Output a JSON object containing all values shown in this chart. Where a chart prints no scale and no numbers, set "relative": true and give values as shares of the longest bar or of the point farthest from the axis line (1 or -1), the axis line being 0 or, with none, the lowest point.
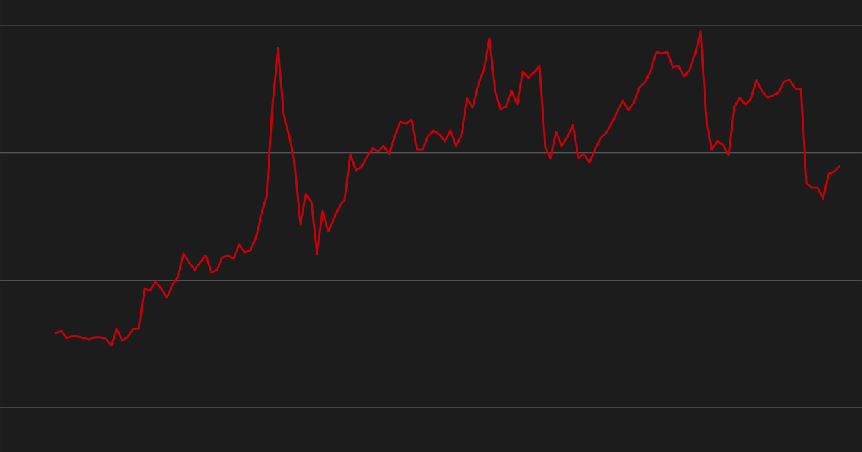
{
  "chart_data": {
    "type": "line",
    "relative": true,
    "ref_lines": [
      {
        "axis": "y",
        "value": 0.338,
        "color": "#6e6e6e"
      },
      {
        "axis": "y",
        "value": 0.677,
        "color": "#6e6e6e"
      },
      {
        "axis": "y",
        "value": 1.015,
        "color": "#6e6e6e"
      }
    ],
    "categories": [
      null,
      null,
      null,
      null,
      null,
      null,
      null,
      null,
      null,
      null,
      null,
      null,
      null,
      null,
      null,
      null,
      null,
      null,
      null,
      null,
      null,
      null,
      null,
      null,
      null,
      null,
      null,
      null,
      null,
      null,
      null,
      null,
      null,
      null,
      null,
      null,
      null,
      null,
      null,
      null,
      null,
      null,
      null,
      null,
      null,
      null,
      null,
      null,
      null,
      null,
      null,
      null,
      null,
      null,
      null,
      null,
      null,
      null,
      null,
      null,
      null,
      null,
      null,
      null,
      null,
      null,
      null,
      null,
      null,
      null,
      null,
      null,
      null,
      null,
      null,
      null,
      null,
      null,
      null,
      null,
      null,
      null,
      null,
      null,
      null,
      null,
      null,
      null,
      null,
      null,
      null,
      null,
      null,
      null,
      null,
      null,
      null,
      null,
      null,
      null,
      null,
      null,
      null,
      null,
      null,
      null,
      null,
      null,
      null,
      null,
      null,
      null,
      null,
      null,
      null,
      null,
      null,
      null,
      null,
      null,
      null,
      null,
      null,
      null,
      null,
      null,
      null,
      null,
      null,
      null,
      null,
      null,
      null,
      null,
      null,
      null,
      null,
      null,
      null,
      null,
      null,
      null
    ],
    "series": [
      {
        "color": "#c8000a",
        "values": [
          0.198,
          0.203,
          0.185,
          0.19,
          0.189,
          0.185,
          0.181,
          0.187,
          0.187,
          0.183,
          0.165,
          0.209,
          0.177,
          0.189,
          0.209,
          0.211,
          0.316,
          0.312,
          0.335,
          0.316,
          0.292,
          0.325,
          0.348,
          0.409,
          0.386,
          0.366,
          0.386,
          0.405,
          0.359,
          0.366,
          0.399,
          0.405,
          0.396,
          0.433,
          0.412,
          0.418,
          0.451,
          0.514,
          0.566,
          0.806,
          0.957,
          0.778,
          0.723,
          0.645,
          0.486,
          0.566,
          0.547,
          0.409,
          0.523,
          0.468,
          0.501,
          0.534,
          0.553,
          0.673,
          0.63,
          0.64,
          0.667,
          0.689,
          0.682,
          0.695,
          0.673,
          0.723,
          0.76,
          0.754,
          0.765,
          0.686,
          0.686,
          0.723,
          0.736,
          0.726,
          0.708,
          0.736,
          0.695,
          0.726,
          0.821,
          0.797,
          0.858,
          0.898,
          0.982,
          0.843,
          0.793,
          0.8,
          0.843,
          0.806,
          0.893,
          0.876,
          0.891,
          0.908,
          0.695,
          0.662,
          0.732,
          0.695,
          0.719,
          0.75,
          0.664,
          0.673,
          0.652,
          0.686,
          0.717,
          0.73,
          0.756,
          0.787,
          0.815,
          0.791,
          0.811,
          0.852,
          0.865,
          0.895,
          0.945,
          0.941,
          0.945,
          0.904,
          0.908,
          0.88,
          0.898,
          0.941,
          1.0,
          0.765,
          0.686,
          0.708,
          0.699,
          0.671,
          0.797,
          0.824,
          0.806,
          0.819,
          0.871,
          0.841,
          0.824,
          0.83,
          0.837,
          0.867,
          0.871,
          0.848,
          0.847,
          0.597,
          0.584,
          0.584,
          0.556,
          0.621,
          0.627,
          0.643
        ]
      }
    ]
  }
}
